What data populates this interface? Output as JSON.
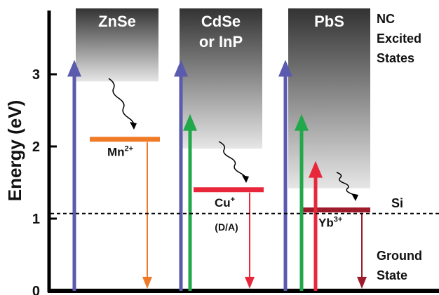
{
  "axis": {
    "y_title": "Energy (eV)",
    "ticks": [
      "0",
      "1",
      "2",
      "3"
    ],
    "range_eV": [
      0,
      3.9
    ]
  },
  "reference_line": {
    "label": "Si",
    "energy_eV": 1.07,
    "style": "dashed"
  },
  "side_labels": {
    "excited": [
      "NC",
      "Excited",
      "States"
    ],
    "ground": [
      "Ground",
      "State"
    ]
  },
  "nanocrystals": [
    {
      "id": "znse",
      "name_lines": [
        "ZnSe"
      ],
      "excited_onset_eV": 2.9,
      "dopant": {
        "symbol": "Mn",
        "charge": "2+",
        "level_eV": 2.1,
        "color": "#f07a26",
        "note": ""
      },
      "absorption": [
        {
          "color": "#5a5aae",
          "top_eV": 3.2
        }
      ]
    },
    {
      "id": "cdse-inp",
      "name_lines": [
        "CdSe",
        "or InP"
      ],
      "excited_onset_eV": 1.97,
      "dopant": {
        "symbol": "Cu",
        "charge": "+",
        "level_eV": 1.4,
        "color": "#e8283a",
        "note": "(D/A)"
      },
      "absorption": [
        {
          "color": "#5a5aae",
          "top_eV": 3.2
        },
        {
          "color": "#21a84a",
          "top_eV": 2.45
        }
      ]
    },
    {
      "id": "pbs",
      "name_lines": [
        "PbS"
      ],
      "excited_onset_eV": 1.42,
      "dopant": {
        "symbol": "Yb",
        "charge": "3+",
        "level_eV": 1.12,
        "color": "#9e1b2c",
        "note": ""
      },
      "absorption": [
        {
          "color": "#5a5aae",
          "top_eV": 3.2
        },
        {
          "color": "#21a84a",
          "top_eV": 2.45
        },
        {
          "color": "#e8283a",
          "top_eV": 1.8
        }
      ]
    }
  ],
  "colors": {
    "axis": "#000000",
    "block_top": "#333333",
    "block_bottom": "#e4e4e4"
  }
}
